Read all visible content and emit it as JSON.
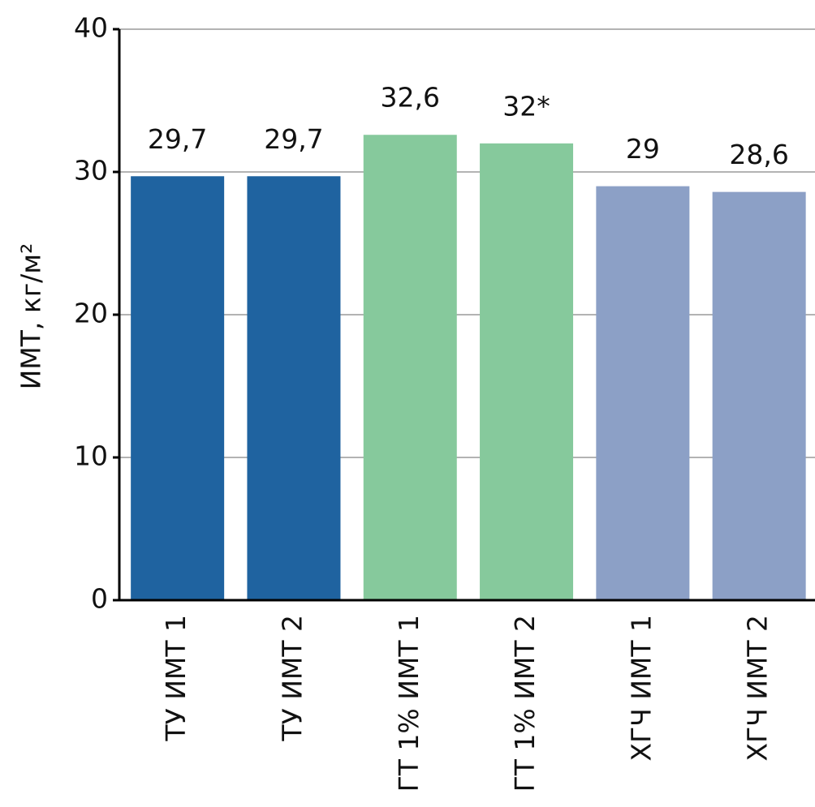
{
  "chart_data": {
    "type": "bar",
    "y_label": "ИМТ, кг/м²",
    "categories": [
      "ТУ ИМТ 1",
      "ТУ ИМТ 2",
      "ГТ 1% ИМТ 1",
      "ГТ 1% ИМТ 2",
      "ХГЧ ИМТ 1",
      "ХГЧ ИМТ 2"
    ],
    "values": [
      29.7,
      29.7,
      32.6,
      32,
      29,
      28.6
    ],
    "value_labels": [
      "29,7",
      "29,7",
      "32,6",
      "32*",
      "29",
      "28,6"
    ],
    "colors": [
      "#1f63a0",
      "#1f63a0",
      "#86c99c",
      "#86c99c",
      "#8ca0c6",
      "#8ca0c6"
    ],
    "ylim": [
      0,
      40
    ],
    "yticks": [
      0,
      10,
      20,
      30,
      40
    ],
    "grid": true
  }
}
